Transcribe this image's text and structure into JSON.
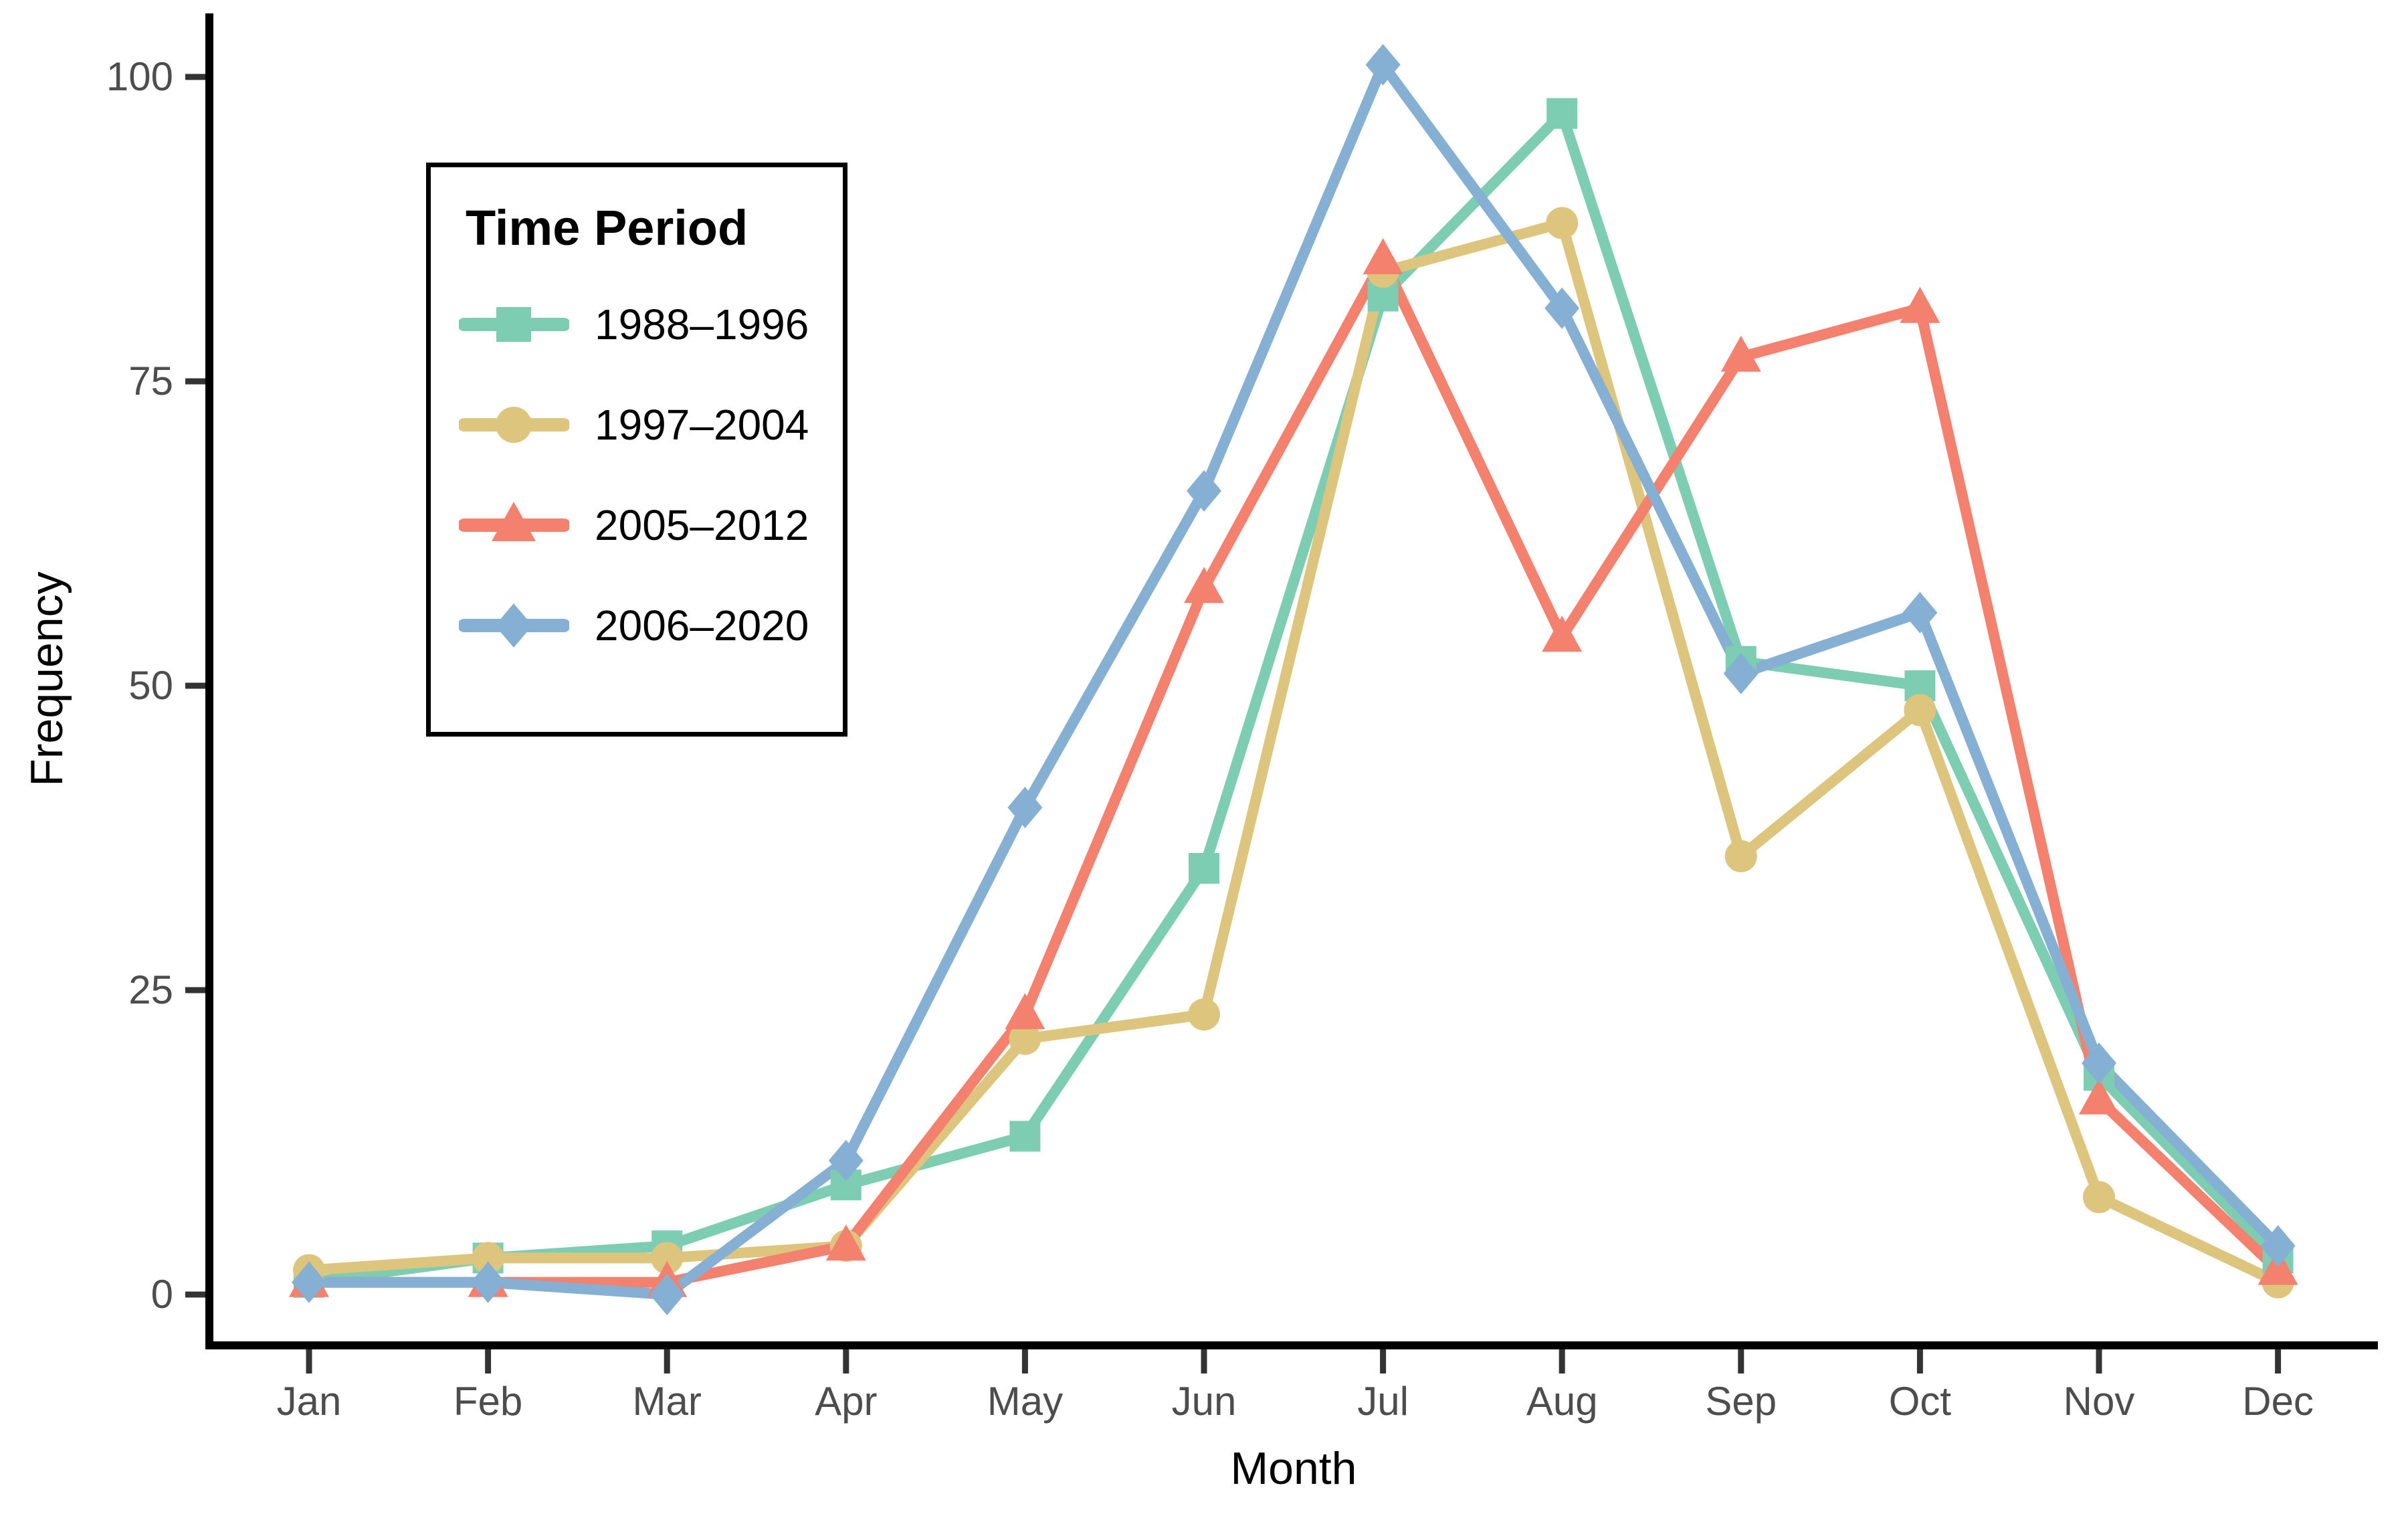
{
  "chart_data": {
    "type": "line",
    "title": "",
    "xlabel": "Month",
    "ylabel": "Frequency",
    "categories": [
      "Jan",
      "Feb",
      "Mar",
      "Apr",
      "May",
      "Jun",
      "Jul",
      "Aug",
      "Sep",
      "Oct",
      "Nov",
      "Dec"
    ],
    "y_ticks": [
      0,
      25,
      50,
      75,
      100
    ],
    "ylim": [
      0,
      105
    ],
    "grid": false,
    "legend_title": "Time Period",
    "legend_position": "top-left-inside",
    "axis_text_color": "#4d4d4d",
    "axis_line_color": "#000000",
    "series": [
      {
        "name": "1988–1996",
        "marker": "square",
        "color": "#7dcdb2",
        "values": [
          1,
          3,
          4,
          9,
          13,
          35,
          82,
          97,
          52,
          50,
          18,
          3
        ]
      },
      {
        "name": "1997–2004",
        "marker": "circle",
        "color": "#dec57e",
        "values": [
          2,
          3,
          3,
          4,
          21,
          23,
          84,
          88,
          36,
          48,
          8,
          1
        ]
      },
      {
        "name": "2005–2012",
        "marker": "triangle",
        "color": "#f4806e",
        "values": [
          1,
          1,
          1,
          4,
          23,
          58,
          85,
          54,
          77,
          81,
          16,
          2
        ]
      },
      {
        "name": "2006–2020",
        "marker": "diamond",
        "color": "#85afd3",
        "values": [
          1,
          1,
          0,
          11,
          40,
          66,
          101,
          81,
          51,
          56,
          19,
          4
        ]
      }
    ]
  }
}
